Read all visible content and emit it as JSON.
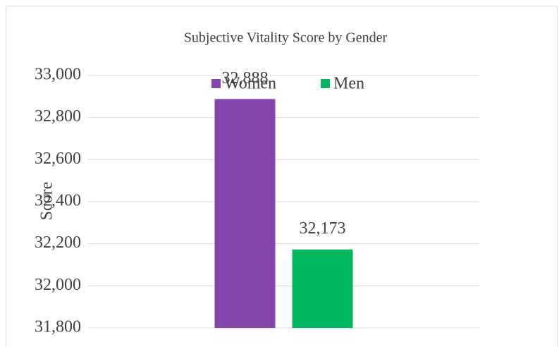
{
  "chart_data": {
    "type": "bar",
    "title": "Subjective Vitality Score by Gender",
    "ylabel": "Score",
    "categories": [
      null
    ],
    "series": [
      {
        "name": "Women",
        "color": "#8446ad",
        "values": [
          32888
        ],
        "value_labels": [
          "32,888"
        ]
      },
      {
        "name": "Men",
        "color": "#00b65e",
        "values": [
          32173
        ],
        "value_labels": [
          "32,173"
        ]
      }
    ],
    "ylim": [
      31800,
      33000
    ],
    "yticks": [
      {
        "value": 31800,
        "label": "31,800"
      },
      {
        "value": 32000,
        "label": "32,000"
      },
      {
        "value": 32200,
        "label": "32,200"
      },
      {
        "value": 32400,
        "label": "32,400"
      },
      {
        "value": 32600,
        "label": "32,600"
      },
      {
        "value": 32800,
        "label": "32,800"
      },
      {
        "value": 33000,
        "label": "33,000"
      }
    ],
    "grid": true,
    "legend": "top"
  }
}
